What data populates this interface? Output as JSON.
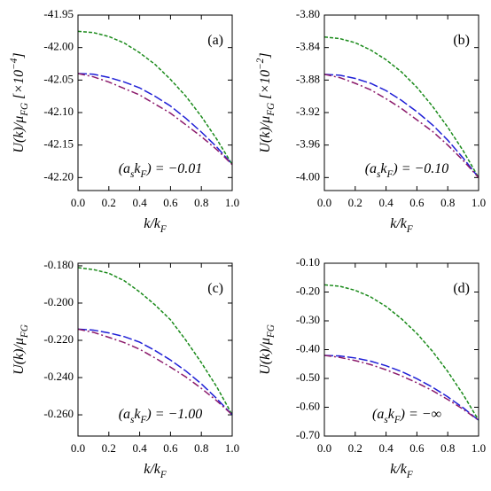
{
  "chart_data": [
    {
      "type": "line",
      "panel_label": "(a)",
      "annotation": "(a_{s}k_{F}) = −0.01",
      "x_label": "k/k_{F}",
      "y_label": "U(k)/μ_{FG}  [×10^{−4}]",
      "x": [
        0,
        0.1,
        0.2,
        0.3,
        0.4,
        0.5,
        0.6,
        0.7,
        0.8,
        0.9,
        1
      ],
      "xlim": [
        0,
        1
      ],
      "xticks": [
        {
          "value": 0,
          "label": "0.0"
        },
        {
          "value": 0.2,
          "label": "0.2"
        },
        {
          "value": 0.4,
          "label": "0.4"
        },
        {
          "value": 0.6,
          "label": "0.6"
        },
        {
          "value": 0.8,
          "label": "0.8"
        },
        {
          "value": 1,
          "label": "1.0"
        }
      ],
      "ylim": [
        -42.22,
        -41.95
      ],
      "yticks": [
        {
          "value": -41.95,
          "label": "-41.95"
        },
        {
          "value": -42,
          "label": "-42.00"
        },
        {
          "value": -42.05,
          "label": "-42.05"
        },
        {
          "value": -42.1,
          "label": "-42.10"
        },
        {
          "value": -42.15,
          "label": "-42.15"
        },
        {
          "value": -42.2,
          "label": "-42.20"
        }
      ],
      "series": [
        {
          "color": "#1a8a1a",
          "dash": "4,2",
          "values": [
            -41.975,
            -41.977,
            -41.983,
            -41.993,
            -42.008,
            -42.026,
            -42.049,
            -42.075,
            -42.106,
            -42.141,
            -42.18
          ]
        },
        {
          "color": "#1f1fd6",
          "dash": "10,3",
          "values": [
            -42.04,
            -42.041,
            -42.046,
            -42.053,
            -42.062,
            -42.075,
            -42.09,
            -42.109,
            -42.13,
            -42.153,
            -42.18
          ]
        },
        {
          "color": "#8b1a6b",
          "dash": "8,3,2,3",
          "values": [
            -42.04,
            -42.045,
            -42.053,
            -42.063,
            -42.073,
            -42.087,
            -42.101,
            -42.119,
            -42.137,
            -42.157,
            -42.18
          ]
        }
      ]
    },
    {
      "type": "line",
      "panel_label": "(b)",
      "annotation": "(a_{s}k_{F}) = −0.10",
      "x_label": "k/k_{F}",
      "y_label": "U(k)/μ_{FG}  [×10^{−2}]",
      "x": [
        0,
        0.1,
        0.2,
        0.3,
        0.4,
        0.5,
        0.6,
        0.7,
        0.8,
        0.9,
        1
      ],
      "xlim": [
        0,
        1
      ],
      "xticks": [
        {
          "value": 0,
          "label": "0.0"
        },
        {
          "value": 0.2,
          "label": "0.2"
        },
        {
          "value": 0.4,
          "label": "0.4"
        },
        {
          "value": 0.6,
          "label": "0.6"
        },
        {
          "value": 0.8,
          "label": "0.8"
        },
        {
          "value": 1,
          "label": "1.0"
        }
      ],
      "ylim": [
        -4.016,
        -3.8
      ],
      "yticks": [
        {
          "value": -3.8,
          "label": "-3.80"
        },
        {
          "value": -3.84,
          "label": "-3.84"
        },
        {
          "value": -3.88,
          "label": "-3.88"
        },
        {
          "value": -3.92,
          "label": "-3.92"
        },
        {
          "value": -3.96,
          "label": "-3.96"
        },
        {
          "value": -4,
          "label": "-4.00"
        }
      ],
      "series": [
        {
          "color": "#1a8a1a",
          "dash": "4,2",
          "values": [
            -3.827,
            -3.829,
            -3.834,
            -3.843,
            -3.855,
            -3.87,
            -3.889,
            -3.912,
            -3.938,
            -3.967,
            -4.0
          ]
        },
        {
          "color": "#1f1fd6",
          "dash": "10,3",
          "values": [
            -3.873,
            -3.874,
            -3.878,
            -3.884,
            -3.893,
            -3.905,
            -3.919,
            -3.935,
            -3.954,
            -3.976,
            -4.0
          ]
        },
        {
          "color": "#8b1a6b",
          "dash": "8,3,2,3",
          "values": [
            -3.873,
            -3.877,
            -3.884,
            -3.892,
            -3.903,
            -3.915,
            -3.929,
            -3.943,
            -3.96,
            -3.979,
            -4.0
          ]
        }
      ]
    },
    {
      "type": "line",
      "panel_label": "(c)",
      "annotation": "(a_{s}k_{F}) = −1.00",
      "x_label": "k/k_{F}",
      "y_label": "U(k)/μ_{FG}",
      "x": [
        0,
        0.1,
        0.2,
        0.3,
        0.4,
        0.5,
        0.6,
        0.7,
        0.8,
        0.9,
        1
      ],
      "xlim": [
        0,
        1
      ],
      "xticks": [
        {
          "value": 0,
          "label": "0.0"
        },
        {
          "value": 0.2,
          "label": "0.2"
        },
        {
          "value": 0.4,
          "label": "0.4"
        },
        {
          "value": 0.6,
          "label": "0.6"
        },
        {
          "value": 0.8,
          "label": "0.8"
        },
        {
          "value": 1,
          "label": "1.0"
        }
      ],
      "ylim": [
        -0.2714,
        -0.1786
      ],
      "yticks": [
        {
          "value": -0.18,
          "label": "-0.180"
        },
        {
          "value": -0.2,
          "label": "-0.200"
        },
        {
          "value": -0.22,
          "label": "-0.220"
        },
        {
          "value": -0.24,
          "label": "-0.240"
        },
        {
          "value": -0.26,
          "label": "-0.260"
        }
      ],
      "series": [
        {
          "color": "#1a8a1a",
          "dash": "4,2",
          "values": [
            -0.181,
            -0.182,
            -0.184,
            -0.188,
            -0.194,
            -0.201,
            -0.209,
            -0.22,
            -0.232,
            -0.245,
            -0.26
          ]
        },
        {
          "color": "#1f1fd6",
          "dash": "10,3",
          "values": [
            -0.214,
            -0.2145,
            -0.216,
            -0.218,
            -0.221,
            -0.2255,
            -0.2306,
            -0.2365,
            -0.2434,
            -0.2513,
            -0.26
          ]
        },
        {
          "color": "#8b1a6b",
          "dash": "8,3,2,3",
          "values": [
            -0.214,
            -0.2157,
            -0.2184,
            -0.2212,
            -0.2248,
            -0.2295,
            -0.2344,
            -0.2397,
            -0.2458,
            -0.2525,
            -0.26
          ]
        }
      ]
    },
    {
      "type": "line",
      "panel_label": "(d)",
      "annotation": "(a_{s}k_{F}) = −∞",
      "x_label": "k/k_{F}",
      "y_label": "U(k)/μ_{FG}",
      "x": [
        0,
        0.1,
        0.2,
        0.3,
        0.4,
        0.5,
        0.6,
        0.7,
        0.8,
        0.9,
        1
      ],
      "xlim": [
        0,
        1
      ],
      "xticks": [
        {
          "value": 0,
          "label": "0.0"
        },
        {
          "value": 0.2,
          "label": "0.2"
        },
        {
          "value": 0.4,
          "label": "0.4"
        },
        {
          "value": 0.6,
          "label": "0.6"
        },
        {
          "value": 0.8,
          "label": "0.8"
        },
        {
          "value": 1,
          "label": "1.0"
        }
      ],
      "ylim": [
        -0.7,
        -0.1
      ],
      "yticks": [
        {
          "value": -0.1,
          "label": "-0.10"
        },
        {
          "value": -0.2,
          "label": "-0.20"
        },
        {
          "value": -0.3,
          "label": "-0.30"
        },
        {
          "value": -0.4,
          "label": "-0.40"
        },
        {
          "value": -0.5,
          "label": "-0.50"
        },
        {
          "value": -0.6,
          "label": "-0.60"
        },
        {
          "value": -0.7,
          "label": "-0.70"
        }
      ],
      "series": [
        {
          "color": "#1a8a1a",
          "dash": "4,2",
          "values": [
            -0.175,
            -0.18,
            -0.194,
            -0.217,
            -0.25,
            -0.293,
            -0.344,
            -0.405,
            -0.476,
            -0.556,
            -0.645
          ]
        },
        {
          "color": "#1f1fd6",
          "dash": "10,3",
          "values": [
            -0.42,
            -0.422,
            -0.429,
            -0.44,
            -0.456,
            -0.476,
            -0.501,
            -0.53,
            -0.564,
            -0.602,
            -0.645
          ]
        },
        {
          "color": "#8b1a6b",
          "dash": "8,3,2,3",
          "values": [
            -0.42,
            -0.427,
            -0.438,
            -0.452,
            -0.47,
            -0.491,
            -0.515,
            -0.542,
            -0.573,
            -0.607,
            -0.645
          ]
        }
      ]
    }
  ]
}
